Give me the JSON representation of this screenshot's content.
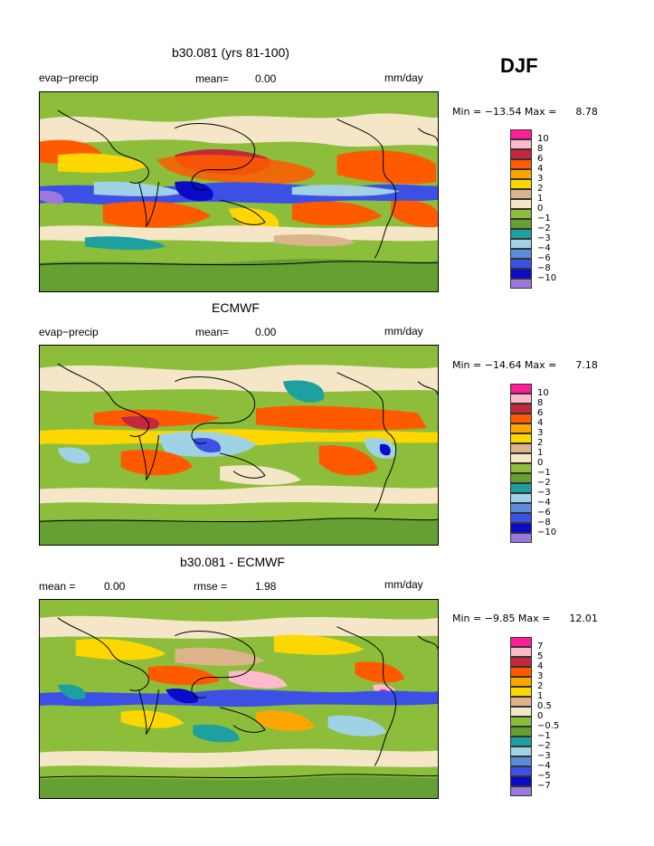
{
  "season": "DJF",
  "panels": [
    {
      "title": "b30.081 (yrs 81-100)",
      "left_label": "evap−precip",
      "mid_label": "mean=",
      "mid_value": "0.00",
      "units": "mm/day",
      "min_text": "Min = −13.54 Max =",
      "max_value": "8.78",
      "levels": [
        "10",
        "8",
        "6",
        "4",
        "3",
        "2",
        "1",
        "0",
        "−1",
        "−2",
        "−3",
        "−4",
        "−6",
        "−8",
        "−10"
      ],
      "colors": [
        "#ff1e96",
        "#ffbbcc",
        "#c3283c",
        "#ff5a00",
        "#ffa500",
        "#ffd700",
        "#dcb48c",
        "#f5e6c8",
        "#8cbe3c",
        "#64a032",
        "#1ea0a0",
        "#a0d2e6",
        "#5a8cdc",
        "#3c50e6",
        "#0a0ac8",
        "#9b78dc"
      ]
    },
    {
      "title": "ECMWF",
      "left_label": "evap−precip",
      "mid_label": "mean=",
      "mid_value": "0.00",
      "units": "mm/day",
      "min_text": "Min = −14.64 Max =",
      "max_value": "7.18",
      "levels": [
        "10",
        "8",
        "6",
        "4",
        "3",
        "2",
        "1",
        "0",
        "−1",
        "−2",
        "−3",
        "−4",
        "−6",
        "−8",
        "−10"
      ],
      "colors": [
        "#ff1e96",
        "#ffbbcc",
        "#c3283c",
        "#ff5a00",
        "#ffa500",
        "#ffd700",
        "#dcb48c",
        "#f5e6c8",
        "#8cbe3c",
        "#64a032",
        "#1ea0a0",
        "#a0d2e6",
        "#5a8cdc",
        "#3c50e6",
        "#0a0ac8",
        "#9b78dc"
      ]
    },
    {
      "title": "b30.081 - ECMWF",
      "left_label": "mean =",
      "left_value": "0.00",
      "mid_label": "rmse =",
      "mid_value": "1.98",
      "units": "mm/day",
      "min_text": "Min = −9.85 Max =",
      "max_value": "12.01",
      "levels": [
        "7",
        "5",
        "4",
        "3",
        "2",
        "1",
        "0.5",
        "0",
        "−0.5",
        "−1",
        "−2",
        "−3",
        "−4",
        "−5",
        "−7"
      ],
      "colors": [
        "#ff1e96",
        "#ffbbcc",
        "#c3283c",
        "#ff5a00",
        "#ffa500",
        "#ffd700",
        "#dcb48c",
        "#f5e6c8",
        "#8cbe3c",
        "#64a032",
        "#1ea0a0",
        "#a0d2e6",
        "#5a8cdc",
        "#3c50e6",
        "#0a0ac8",
        "#9b78dc"
      ]
    }
  ]
}
